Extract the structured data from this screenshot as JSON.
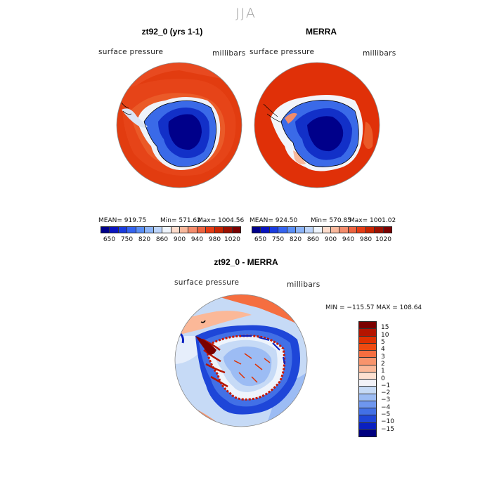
{
  "title": "JJA",
  "panels": [
    {
      "title": "zt92_0 (yrs 1-1)",
      "field_label": "surface pressure",
      "units_label": "millibars",
      "stats": {
        "mean": "MEAN= 919.75",
        "min": "Min= 571.62",
        "max": "Max= 1004.56"
      },
      "colorbar_ticks": [
        "650",
        "750",
        "820",
        "860",
        "900",
        "940",
        "980",
        "1020"
      ]
    },
    {
      "title": "MERRA",
      "field_label": "surface pressure",
      "units_label": "millibars",
      "stats": {
        "mean": "MEAN= 924.50",
        "min": "Min= 570.85",
        "max": "Max= 1001.02"
      },
      "colorbar_ticks": [
        "650",
        "750",
        "820",
        "860",
        "900",
        "940",
        "980",
        "1020"
      ]
    },
    {
      "title": "zt92_0 - MERRA",
      "field_label": "surface pressure",
      "units_label": "millibars",
      "stats": {
        "minmax": "MIN = −115.57 MAX = 108.64"
      },
      "colorbar_ticks": [
        "15",
        "10",
        "5",
        "4",
        "3",
        "2",
        "1",
        "0",
        "−1",
        "−2",
        "−3",
        "−4",
        "−5",
        "−10",
        "−15"
      ]
    }
  ],
  "colors": {
    "abs_scale": [
      "#00008a",
      "#0a14c0",
      "#1a3ce0",
      "#3564f0",
      "#5a8ef5",
      "#8cb4f8",
      "#bcd4fa",
      "#eef4fc",
      "#fcdccc",
      "#f8b89c",
      "#f48c6c",
      "#ee6440",
      "#e63c14",
      "#c82400",
      "#9c1000",
      "#7a0000"
    ],
    "diff_scale": [
      "#7a0000",
      "#b41400",
      "#e03000",
      "#ef4a10",
      "#f56e40",
      "#f8946c",
      "#fbb898",
      "#fde0d0",
      "#f2f2f8",
      "#c6daf6",
      "#9cbcf4",
      "#6e96ee",
      "#4270e6",
      "#1e46d8",
      "#0a20c0",
      "#000080"
    ]
  }
}
